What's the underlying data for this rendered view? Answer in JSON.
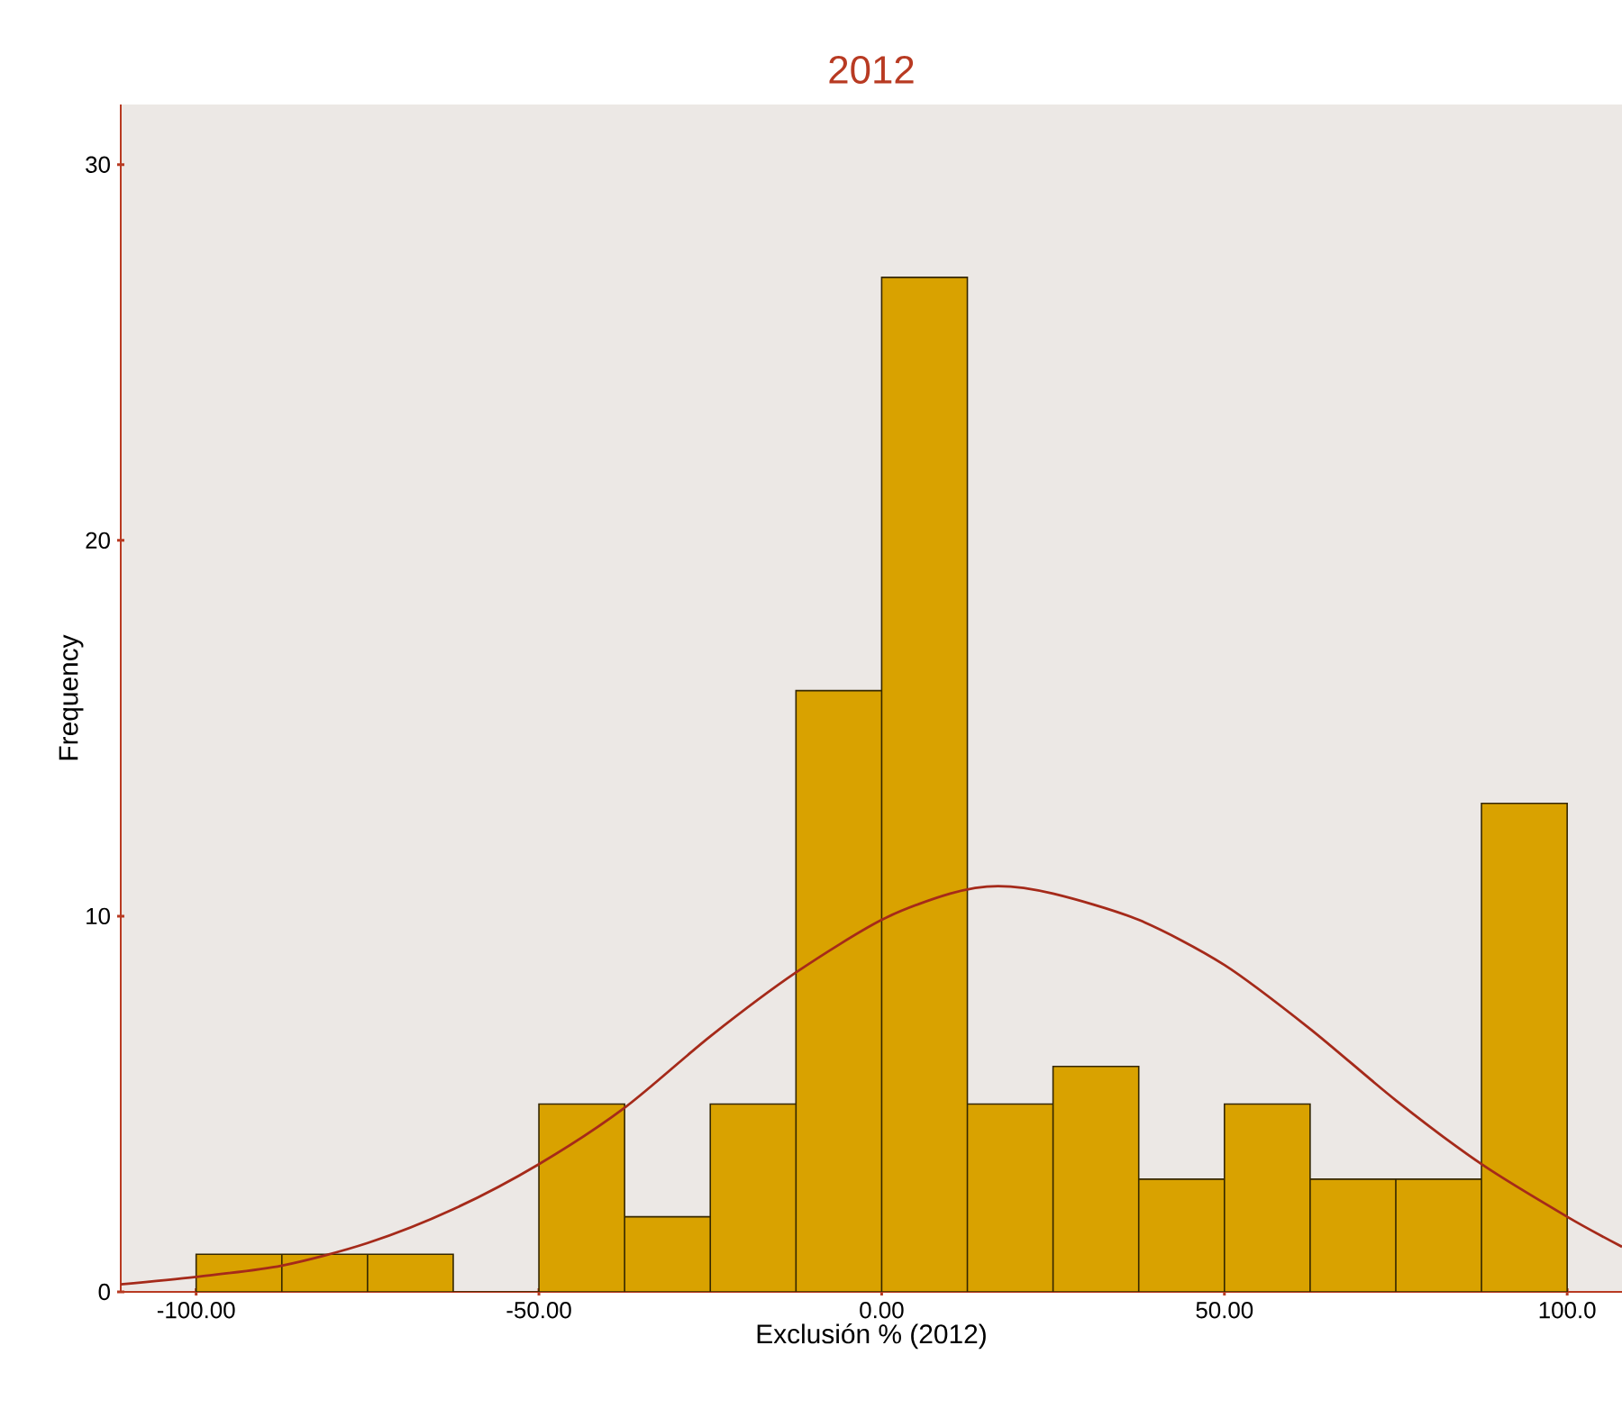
{
  "chart_data": {
    "type": "histogram",
    "title": "2012",
    "xlabel": "Exclusión % (2012)",
    "ylabel": "Frequency",
    "xlim": [
      -111,
      108
    ],
    "ylim": [
      0,
      31.6
    ],
    "xticks": [
      {
        "value": -100,
        "label": "-100.00"
      },
      {
        "value": -50,
        "label": "-50.00"
      },
      {
        "value": 0,
        "label": "0.00"
      },
      {
        "value": 50,
        "label": "50.00"
      },
      {
        "value": 100,
        "label": "100.0"
      }
    ],
    "yticks": [
      0,
      10,
      20,
      30
    ],
    "grid": false,
    "series": [
      {
        "color": "#d9a200",
        "bins": [
          -100,
          -87.5,
          -75,
          -62.5,
          -50,
          -37.5,
          -25,
          -12.5,
          0,
          12.5,
          25,
          37.5,
          50,
          62.5,
          75,
          87.5,
          100
        ],
        "values": [
          1,
          1,
          1,
          0,
          5,
          2,
          5,
          16,
          27,
          5,
          6,
          3,
          5,
          3,
          3,
          13
        ]
      },
      {
        "type": "line",
        "color": "#a52a1a",
        "x": [
          -111,
          -100,
          -87.5,
          -75,
          -62.5,
          -50,
          -37.5,
          -25,
          -12.5,
          0,
          10,
          17,
          25,
          37.5,
          50,
          62.5,
          75,
          87.5,
          100,
          108
        ],
        "values": [
          0.2,
          0.4,
          0.7,
          1.3,
          2.2,
          3.4,
          4.9,
          6.8,
          8.5,
          9.9,
          10.6,
          10.8,
          10.6,
          9.9,
          8.7,
          7.0,
          5.1,
          3.4,
          2.0,
          1.2
        ]
      }
    ]
  }
}
